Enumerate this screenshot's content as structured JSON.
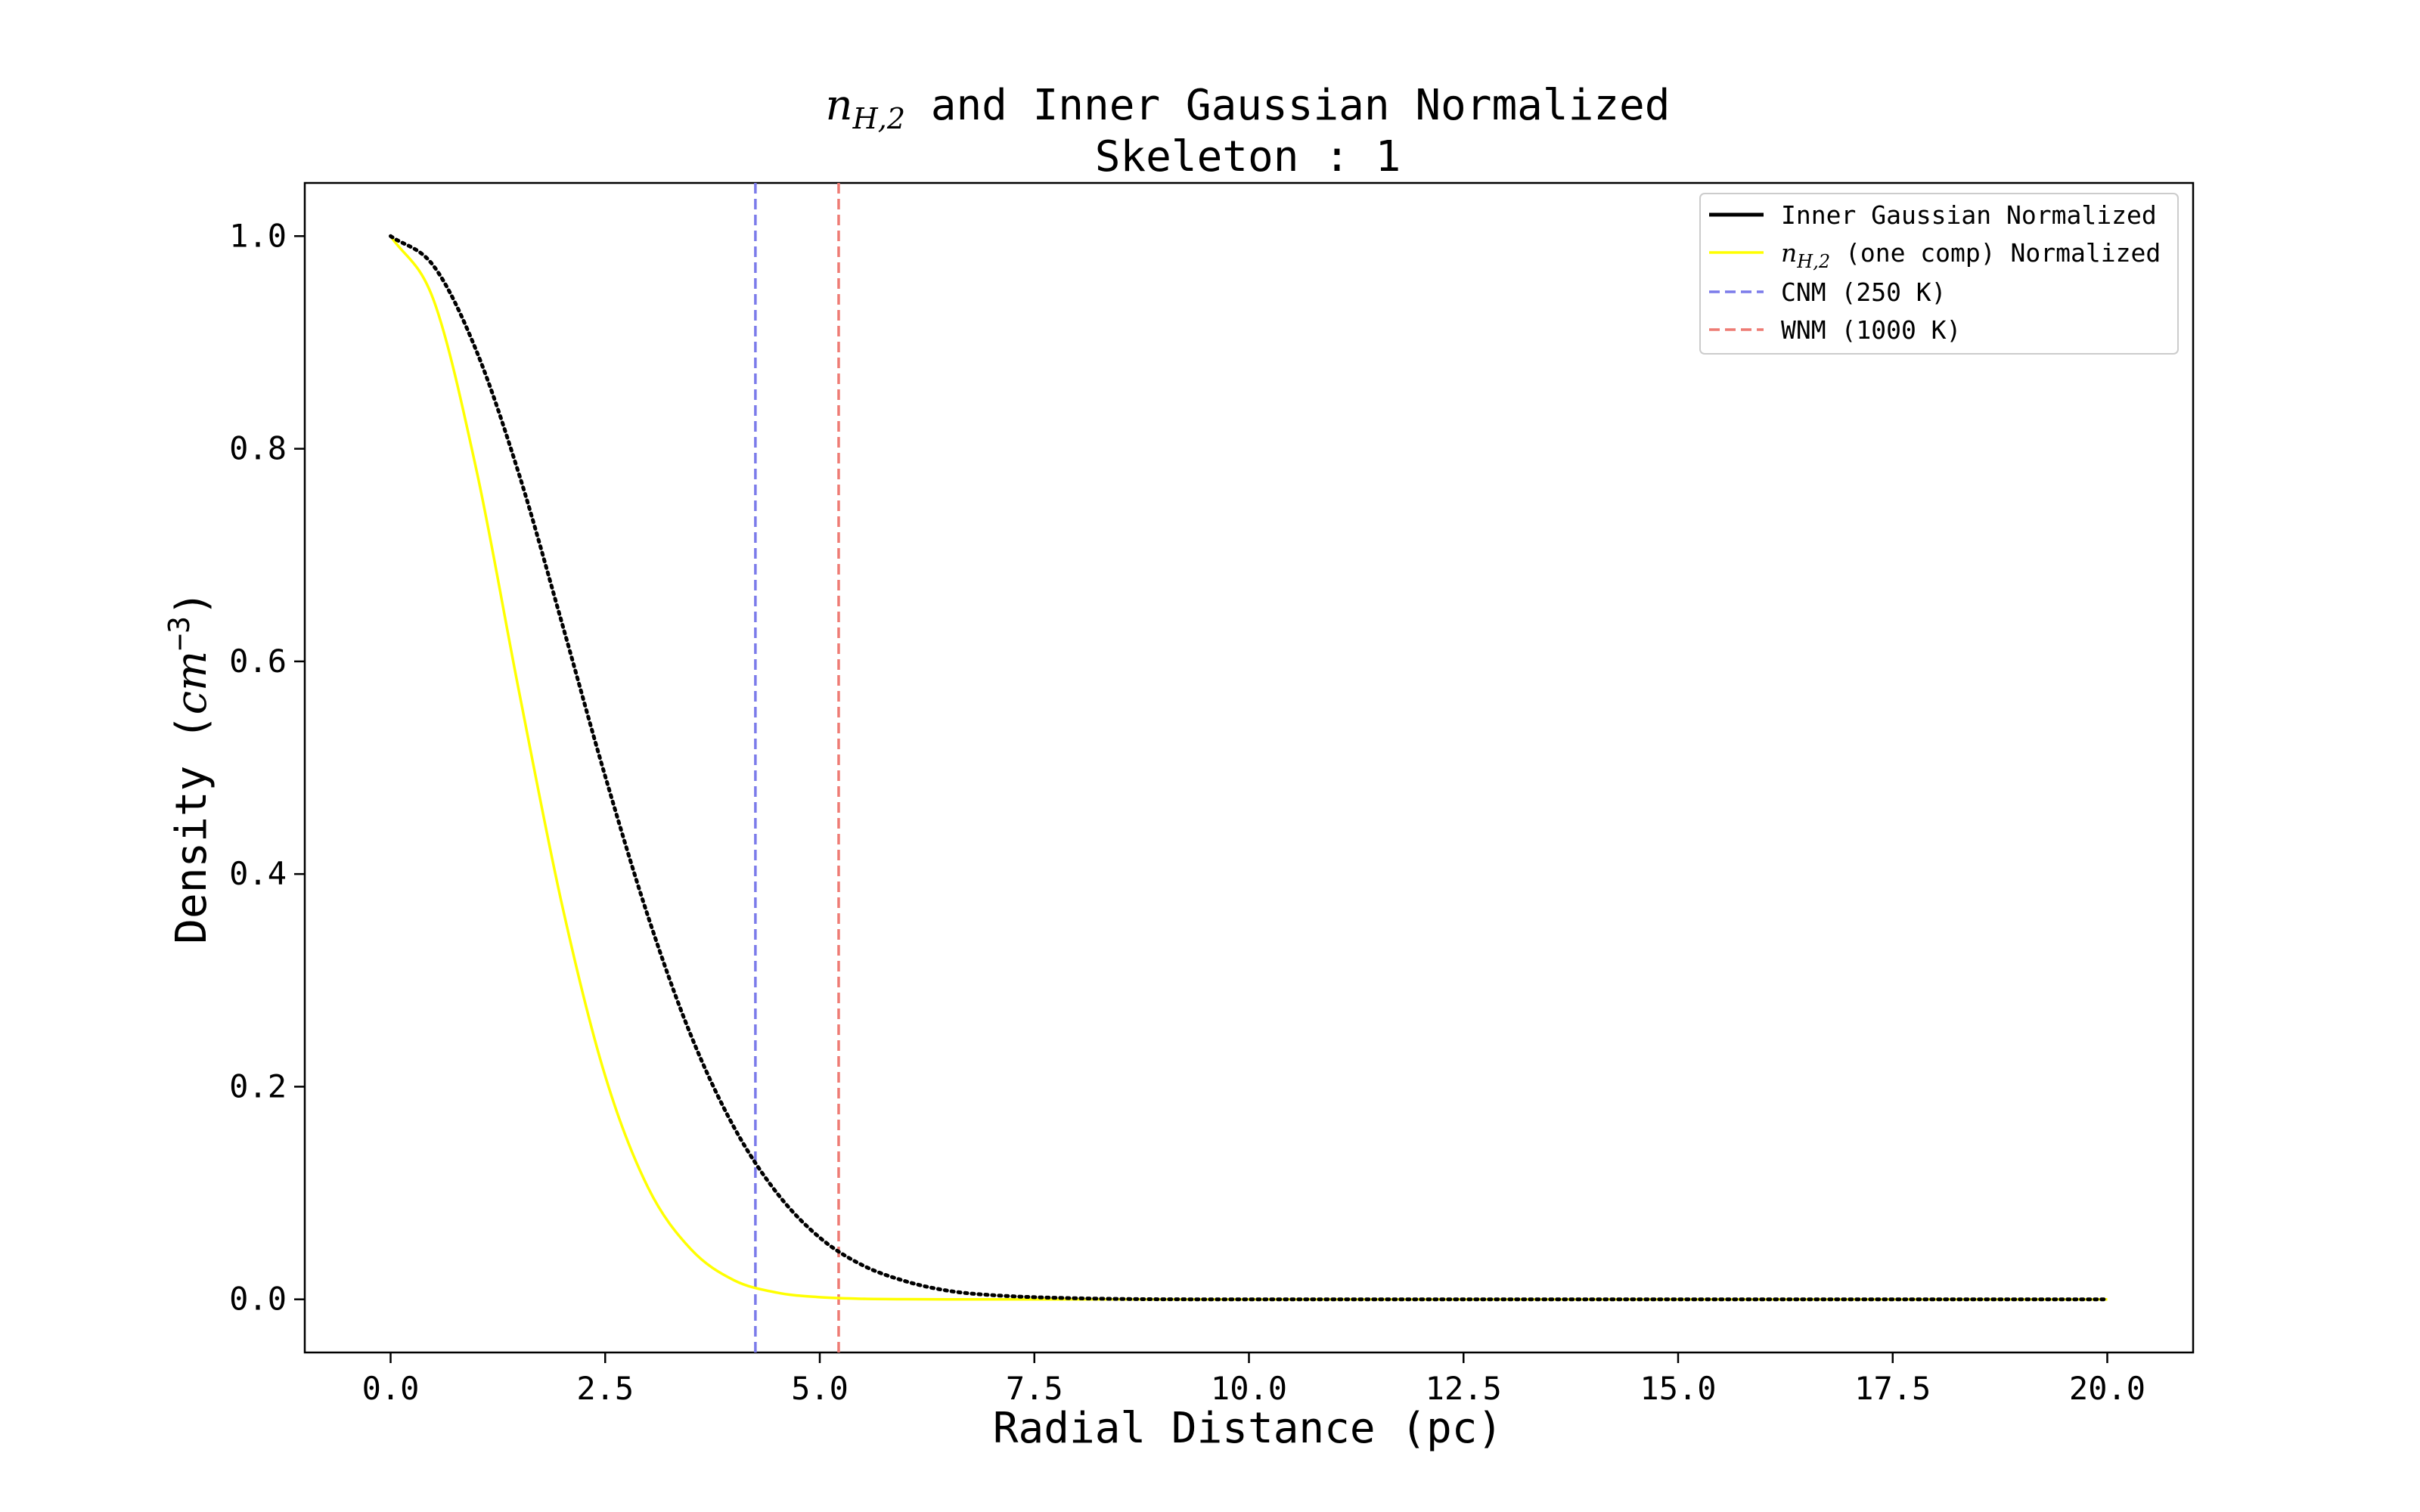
{
  "chart_data": {
    "type": "line",
    "title_prefix_var": "n",
    "title_prefix_sub": "H,2",
    "title_line1": " and Inner Gaussian Normalized",
    "title_line2": "Skeleton : 1",
    "xlabel": "Radial Distance (pc)",
    "ylabel_prefix": "Density (",
    "ylabel_unit": "cm",
    "ylabel_exp": "−3",
    "ylabel_suffix": ")",
    "xlim": [
      -1.0,
      21.0
    ],
    "ylim": [
      -0.05,
      1.05
    ],
    "xticks": [
      0.0,
      2.5,
      5.0,
      7.5,
      10.0,
      12.5,
      15.0,
      17.5,
      20.0
    ],
    "xtick_labels": [
      "0.0",
      "2.5",
      "5.0",
      "7.5",
      "10.0",
      "12.5",
      "15.0",
      "17.5",
      "20.0"
    ],
    "yticks": [
      0.0,
      0.2,
      0.4,
      0.6,
      0.8,
      1.0
    ],
    "ytick_labels": [
      "0.0",
      "0.2",
      "0.4",
      "0.6",
      "0.8",
      "1.0"
    ],
    "grid": false,
    "legend_position": "top-right",
    "series": [
      {
        "legend_label": "Inner Gaussian Normalized",
        "color": "#000000",
        "style": "dotted",
        "x": [
          0,
          0.5,
          1.0,
          1.5,
          2.0,
          2.5,
          3.0,
          3.5,
          4.0,
          4.5,
          5.0,
          5.5,
          6.0,
          6.5,
          7.0,
          8.0,
          10.0,
          12.5,
          15.0,
          17.5,
          20.0
        ],
        "y": [
          1.0,
          0.972,
          0.892,
          0.775,
          0.635,
          0.492,
          0.36,
          0.248,
          0.162,
          0.1,
          0.058,
          0.032,
          0.017,
          0.008,
          0.004,
          0.001,
          0.0,
          0.0,
          0.0,
          0.0,
          0.0
        ]
      },
      {
        "legend_label_var": "n",
        "legend_label_sub": "H,2",
        "legend_label_suffix": " (one comp) Normalized",
        "color": "#ffff00",
        "style": "solid",
        "x": [
          0,
          0.5,
          1.0,
          1.5,
          2.0,
          2.5,
          3.0,
          3.5,
          4.0,
          4.5,
          5.0,
          5.5,
          6.0,
          7.0,
          8.0,
          10.0,
          12.5,
          15.0,
          17.5,
          20.0
        ],
        "y": [
          1.0,
          0.94,
          0.78,
          0.57,
          0.37,
          0.21,
          0.105,
          0.047,
          0.018,
          0.0063,
          0.002,
          0.0005,
          0.0001,
          0.0,
          0.0,
          0.0,
          0.0,
          0.0,
          0.0,
          0.0
        ]
      }
    ],
    "vlines": [
      {
        "legend_label": "CNM (250 K)",
        "x": 4.25,
        "color": "#7b7bea",
        "style": "dashed"
      },
      {
        "legend_label": "WNM (1000 K)",
        "x": 5.22,
        "color": "#ee7b74",
        "style": "dashed"
      }
    ]
  }
}
